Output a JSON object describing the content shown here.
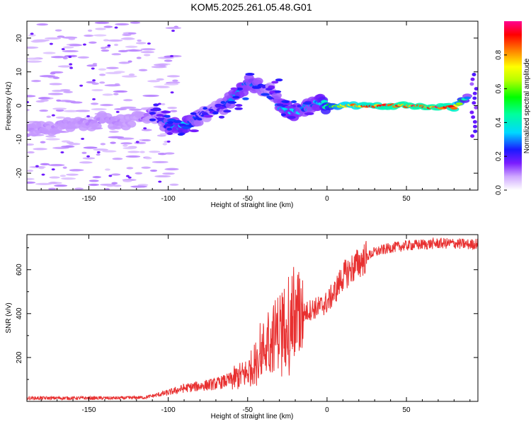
{
  "chart_data": [
    {
      "type": "heatmap",
      "title": "KOM5.2025.261.05.48.G01",
      "xlabel": "Height of straight line (km)",
      "ylabel": "Frequency (Hz)",
      "xlim": [
        -189,
        95
      ],
      "ylim": [
        -25,
        25
      ],
      "xticks": [
        -150,
        -100,
        -50,
        0,
        50
      ],
      "yticks": [
        -20,
        -10,
        0,
        10,
        20
      ],
      "colorbar": {
        "label": "Normalized spectral amplitude",
        "range": [
          0.0,
          1.0
        ],
        "ticks": [
          0.0,
          0.2,
          0.4,
          0.6,
          0.8
        ]
      },
      "ridge": {
        "description": "dominant frequency track (Hz) vs height (km)",
        "x": [
          -189,
          -180,
          -170,
          -160,
          -150,
          -140,
          -130,
          -120,
          -110,
          -105,
          -100,
          -95,
          -90,
          -85,
          -80,
          -75,
          -70,
          -65,
          -60,
          -55,
          -50,
          -45,
          -40,
          -35,
          -30,
          -25,
          -20,
          -15,
          -10,
          -5,
          0,
          10,
          20,
          30,
          40,
          50,
          60,
          70,
          80,
          90
        ],
        "y": [
          -8,
          -7,
          -6,
          -5,
          -5,
          -4,
          -5,
          -4,
          -2,
          -4,
          -6,
          -6,
          -6,
          -5,
          -3,
          -2,
          -1,
          0,
          2,
          4,
          7,
          6,
          5,
          5,
          0,
          -1,
          -2,
          -1,
          0,
          1,
          0,
          0,
          0,
          0,
          0,
          0,
          -0.2,
          -0.5,
          -0.5,
          3
        ],
        "amplitude": [
          0.1,
          0.1,
          0.1,
          0.1,
          0.1,
          0.1,
          0.1,
          0.1,
          0.15,
          0.2,
          0.3,
          0.35,
          0.4,
          0.3,
          0.25,
          0.2,
          0.2,
          0.25,
          0.3,
          0.35,
          0.3,
          0.3,
          0.25,
          0.2,
          0.3,
          0.35,
          0.35,
          0.3,
          0.3,
          0.35,
          0.5,
          0.75,
          0.85,
          0.9,
          0.95,
          0.95,
          0.95,
          0.95,
          0.9,
          0.2
        ]
      }
    },
    {
      "type": "line",
      "xlabel": "Height of straight line (km)",
      "ylabel": "SNR (v/v)",
      "xlim": [
        -189,
        95
      ],
      "ylim": [
        0,
        760
      ],
      "xticks": [
        -150,
        -100,
        -50,
        0,
        50
      ],
      "yticks": [
        200,
        400,
        600
      ],
      "line_color": "#e83030",
      "series": [
        {
          "name": "SNR",
          "x": [
            -189,
            -170,
            -150,
            -130,
            -115,
            -110,
            -100,
            -90,
            -80,
            -70,
            -60,
            -50,
            -45,
            -40,
            -35,
            -30,
            -25,
            -20,
            -15,
            -10,
            -5,
            0,
            5,
            10,
            15,
            20,
            25,
            30,
            35,
            40,
            50,
            60,
            70,
            80,
            90,
            95
          ],
          "y": [
            15,
            15,
            15,
            15,
            18,
            25,
            40,
            60,
            70,
            80,
            100,
            130,
            180,
            240,
            280,
            330,
            360,
            380,
            400,
            420,
            430,
            450,
            500,
            570,
            600,
            630,
            660,
            680,
            690,
            700,
            710,
            715,
            720,
            720,
            715,
            720
          ]
        }
      ]
    }
  ]
}
